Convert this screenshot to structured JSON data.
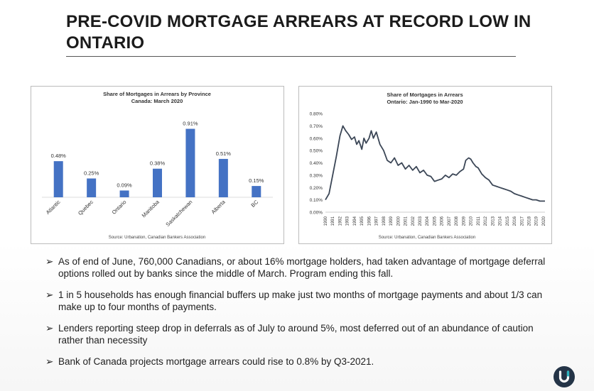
{
  "slide": {
    "title": "PRE-COVID MORTGAGE ARREARS AT RECORD LOW IN ONTARIO",
    "bullets": [
      "As of end of June,  760,000 Canadians, or about 16% mortgage holders, had taken advantage of mortgage deferral options rolled out by banks since the middle of March. Program ending this fall.",
      "1 in 5 households has enough financial buffers up make just two months of mortgage payments and about 1/3 can make up to four months of payments.",
      "Lenders reporting steep drop in deferrals as of July to around 5%, most deferred out of an abundance of caution rather than necessity",
      "Bank of Canada projects mortgage arrears could rise to 0.8% by Q3-2021."
    ],
    "bullet_marker": "➢",
    "logo_icon": "u-logo-icon"
  },
  "chart_data": [
    {
      "type": "bar",
      "title": "Share of Mortgages in Arrears by Province",
      "subtitle": "Canada: March 2020",
      "categories": [
        "Atlantic",
        "Quebec",
        "Ontario",
        "Manitoba",
        "Saskatchewan",
        "Alberta",
        "BC"
      ],
      "values": [
        0.48,
        0.25,
        0.09,
        0.38,
        0.91,
        0.51,
        0.15
      ],
      "data_labels": [
        "0.48%",
        "0.25%",
        "0.09%",
        "0.38%",
        "0.91%",
        "0.51%",
        "0.15%"
      ],
      "ylim": [
        0,
        1.0
      ],
      "grid": false,
      "color": "#4472c4",
      "source": "Source: Urbanation, Canadian Bankers Association"
    },
    {
      "type": "line",
      "title": "Share of Mortgages in Arrears",
      "subtitle": "Ontario: Jan-1990 to Mar-2020",
      "x": [
        1990.0,
        1990.5,
        1991.0,
        1991.5,
        1992.0,
        1992.4,
        1992.8,
        1993.2,
        1993.6,
        1994.0,
        1994.3,
        1994.6,
        1995.0,
        1995.3,
        1995.6,
        1996.0,
        1996.3,
        1996.6,
        1997.0,
        1997.5,
        1998.0,
        1998.5,
        1999.0,
        1999.5,
        2000.0,
        2000.5,
        2001.0,
        2001.5,
        2002.0,
        2002.5,
        2003.0,
        2003.5,
        2004.0,
        2004.5,
        2005.0,
        2005.5,
        2006.0,
        2006.5,
        2007.0,
        2007.5,
        2008.0,
        2008.5,
        2009.0,
        2009.3,
        2009.7,
        2010.0,
        2010.3,
        2010.7,
        2011.0,
        2011.5,
        2012.0,
        2012.5,
        2013.0,
        2013.5,
        2014.0,
        2014.5,
        2015.0,
        2015.5,
        2016.0,
        2016.5,
        2017.0,
        2017.5,
        2018.0,
        2018.5,
        2019.0,
        2019.5,
        2020.0,
        2020.2
      ],
      "y": [
        0.1,
        0.15,
        0.3,
        0.45,
        0.62,
        0.7,
        0.66,
        0.63,
        0.59,
        0.61,
        0.55,
        0.58,
        0.51,
        0.6,
        0.56,
        0.6,
        0.66,
        0.6,
        0.65,
        0.55,
        0.5,
        0.42,
        0.4,
        0.44,
        0.38,
        0.4,
        0.35,
        0.38,
        0.34,
        0.37,
        0.32,
        0.34,
        0.3,
        0.29,
        0.25,
        0.26,
        0.27,
        0.3,
        0.28,
        0.31,
        0.3,
        0.33,
        0.35,
        0.42,
        0.44,
        0.43,
        0.4,
        0.37,
        0.36,
        0.31,
        0.28,
        0.26,
        0.22,
        0.21,
        0.2,
        0.19,
        0.18,
        0.17,
        0.15,
        0.14,
        0.13,
        0.12,
        0.11,
        0.1,
        0.1,
        0.09,
        0.09,
        0.09
      ],
      "y_ticks": [
        "0.00%",
        "0.10%",
        "0.20%",
        "0.30%",
        "0.40%",
        "0.50%",
        "0.60%",
        "0.70%",
        "0.80%"
      ],
      "x_ticks": [
        "1990",
        "1991",
        "1992",
        "1993",
        "1994",
        "1995",
        "1996",
        "1997",
        "1998",
        "1999",
        "2000",
        "2001",
        "2002",
        "2003",
        "2004",
        "2005",
        "2006",
        "2007",
        "2008",
        "2009",
        "2010",
        "2011",
        "2012",
        "2013",
        "2014",
        "2015",
        "2016",
        "2017",
        "2018",
        "2019",
        "2020"
      ],
      "xlim": [
        1990,
        2020.2
      ],
      "ylim": [
        0,
        0.8
      ],
      "grid": false,
      "color": "#3b4656",
      "source": "Source: Urbanation, Canadian Bankers Association"
    }
  ]
}
